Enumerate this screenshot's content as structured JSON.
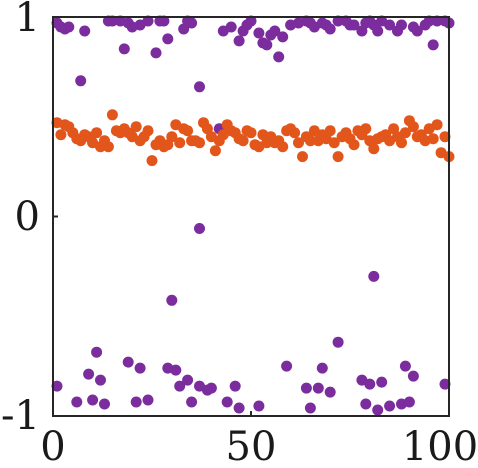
{
  "chart_data": {
    "type": "scatter",
    "title": "",
    "xlabel": "",
    "ylabel": "",
    "xlim": [
      0,
      100
    ],
    "ylim": [
      -1,
      1
    ],
    "grid": false,
    "legend": "none",
    "x_ticks": [
      {
        "value": 0,
        "label": "0"
      },
      {
        "value": 50,
        "label": "50"
      },
      {
        "value": 100,
        "label": "100"
      }
    ],
    "y_ticks": [
      {
        "value": -1,
        "label": "-1"
      },
      {
        "value": 0,
        "label": "0"
      },
      {
        "value": 1,
        "label": "1"
      }
    ],
    "series": [
      {
        "color": "#7B2D9E",
        "points": [
          [
            1,
            0.97
          ],
          [
            2,
            0.95
          ],
          [
            3,
            0.94
          ],
          [
            4,
            0.95
          ],
          [
            7,
            0.68
          ],
          [
            8,
            0.93
          ],
          [
            14,
            0.98
          ],
          [
            15,
            0.98
          ],
          [
            17,
            0.98
          ],
          [
            18,
            0.84
          ],
          [
            19,
            0.97
          ],
          [
            20,
            0.95
          ],
          [
            22,
            0.96
          ],
          [
            24,
            0.98
          ],
          [
            26,
            0.82
          ],
          [
            27,
            0.98
          ],
          [
            28,
            0.98
          ],
          [
            29,
            0.89
          ],
          [
            33,
            0.94
          ],
          [
            34,
            0.98
          ],
          [
            35,
            0.97
          ],
          [
            37,
            0.65
          ],
          [
            43,
            0.93
          ],
          [
            45,
            0.95
          ],
          [
            47,
            0.88
          ],
          [
            48,
            0.93
          ],
          [
            49,
            0.96
          ],
          [
            50,
            0.98
          ],
          [
            52,
            0.92
          ],
          [
            53,
            0.87
          ],
          [
            54,
            0.86
          ],
          [
            55,
            0.91
          ],
          [
            56,
            0.93
          ],
          [
            57,
            0.8
          ],
          [
            58,
            0.9
          ],
          [
            60,
            0.96
          ],
          [
            62,
            0.97
          ],
          [
            64,
            0.98
          ],
          [
            65,
            0.97
          ],
          [
            66,
            0.95
          ],
          [
            68,
            0.97
          ],
          [
            69,
            0.96
          ],
          [
            70,
            0.94
          ],
          [
            72,
            0.98
          ],
          [
            74,
            0.98
          ],
          [
            75,
            0.96
          ],
          [
            76,
            0.96
          ],
          [
            78,
            0.93
          ],
          [
            79,
            0.97
          ],
          [
            80,
            0.98
          ],
          [
            81,
            0.96
          ],
          [
            82,
            0.93
          ],
          [
            83,
            0.98
          ],
          [
            85,
            0.96
          ],
          [
            87,
            0.93
          ],
          [
            88,
            0.96
          ],
          [
            91,
            0.95
          ],
          [
            92,
            0.93
          ],
          [
            94,
            0.96
          ],
          [
            95,
            0.98
          ],
          [
            96,
            0.86
          ],
          [
            97,
            0.98
          ],
          [
            99,
            0.98
          ],
          [
            100,
            0.97
          ],
          [
            42,
            0.44
          ],
          [
            37,
            -0.06
          ],
          [
            30,
            -0.42
          ],
          [
            81,
            -0.3
          ],
          [
            1,
            -0.85
          ],
          [
            6,
            -0.93
          ],
          [
            9,
            -0.79
          ],
          [
            10,
            -0.92
          ],
          [
            11,
            -0.68
          ],
          [
            12,
            -0.82
          ],
          [
            13,
            -0.94
          ],
          [
            19,
            -0.73
          ],
          [
            21,
            -0.93
          ],
          [
            22,
            -0.76
          ],
          [
            24,
            -0.92
          ],
          [
            29,
            -0.76
          ],
          [
            31,
            -0.77
          ],
          [
            32,
            -0.85
          ],
          [
            34,
            -0.82
          ],
          [
            35,
            -0.93
          ],
          [
            37,
            -0.85
          ],
          [
            39,
            -0.87
          ],
          [
            40,
            -0.86
          ],
          [
            44,
            -0.93
          ],
          [
            46,
            -0.85
          ],
          [
            47,
            -0.96
          ],
          [
            52,
            -0.95
          ],
          [
            59,
            -0.75
          ],
          [
            64,
            -0.86
          ],
          [
            65,
            -0.96
          ],
          [
            67,
            -0.86
          ],
          [
            68,
            -0.76
          ],
          [
            70,
            -0.88
          ],
          [
            72,
            -0.63
          ],
          [
            78,
            -0.82
          ],
          [
            79,
            -0.94
          ],
          [
            80,
            -0.84
          ],
          [
            82,
            -0.97
          ],
          [
            83,
            -0.83
          ],
          [
            85,
            -0.95
          ],
          [
            88,
            -0.94
          ],
          [
            89,
            -0.75
          ],
          [
            90,
            -0.93
          ],
          [
            91,
            -0.8
          ],
          [
            99,
            -0.84
          ]
        ]
      },
      {
        "color": "#E2561C",
        "points": [
          [
            1,
            0.47
          ],
          [
            2,
            0.41
          ],
          [
            3,
            0.46
          ],
          [
            4,
            0.45
          ],
          [
            5,
            0.42
          ],
          [
            6,
            0.39
          ],
          [
            7,
            0.38
          ],
          [
            8,
            0.41
          ],
          [
            9,
            0.4
          ],
          [
            10,
            0.37
          ],
          [
            11,
            0.42
          ],
          [
            12,
            0.35
          ],
          [
            13,
            0.38
          ],
          [
            14,
            0.35
          ],
          [
            15,
            0.51
          ],
          [
            16,
            0.43
          ],
          [
            17,
            0.42
          ],
          [
            18,
            0.44
          ],
          [
            19,
            0.42
          ],
          [
            20,
            0.4
          ],
          [
            21,
            0.45
          ],
          [
            22,
            0.38
          ],
          [
            23,
            0.4
          ],
          [
            24,
            0.43
          ],
          [
            25,
            0.28
          ],
          [
            26,
            0.36
          ],
          [
            27,
            0.38
          ],
          [
            28,
            0.35
          ],
          [
            29,
            0.36
          ],
          [
            30,
            0.4
          ],
          [
            31,
            0.46
          ],
          [
            32,
            0.37
          ],
          [
            33,
            0.44
          ],
          [
            34,
            0.43
          ],
          [
            35,
            0.38
          ],
          [
            36,
            0.38
          ],
          [
            37,
            0.37
          ],
          [
            38,
            0.47
          ],
          [
            39,
            0.44
          ],
          [
            40,
            0.4
          ],
          [
            41,
            0.33
          ],
          [
            42,
            0.38
          ],
          [
            43,
            0.41
          ],
          [
            44,
            0.46
          ],
          [
            45,
            0.43
          ],
          [
            46,
            0.42
          ],
          [
            47,
            0.39
          ],
          [
            48,
            0.38
          ],
          [
            49,
            0.43
          ],
          [
            50,
            0.42
          ],
          [
            51,
            0.36
          ],
          [
            52,
            0.35
          ],
          [
            53,
            0.41
          ],
          [
            54,
            0.37
          ],
          [
            55,
            0.4
          ],
          [
            56,
            0.37
          ],
          [
            57,
            0.38
          ],
          [
            58,
            0.35
          ],
          [
            59,
            0.43
          ],
          [
            60,
            0.44
          ],
          [
            61,
            0.42
          ],
          [
            62,
            0.37
          ],
          [
            63,
            0.3
          ],
          [
            64,
            0.4
          ],
          [
            65,
            0.38
          ],
          [
            66,
            0.43
          ],
          [
            67,
            0.38
          ],
          [
            68,
            0.41
          ],
          [
            69,
            0.39
          ],
          [
            70,
            0.43
          ],
          [
            71,
            0.37
          ],
          [
            72,
            0.3
          ],
          [
            73,
            0.4
          ],
          [
            74,
            0.42
          ],
          [
            75,
            0.39
          ],
          [
            76,
            0.36
          ],
          [
            77,
            0.43
          ],
          [
            78,
            0.41
          ],
          [
            79,
            0.44
          ],
          [
            80,
            0.38
          ],
          [
            81,
            0.34
          ],
          [
            82,
            0.39
          ],
          [
            83,
            0.4
          ],
          [
            84,
            0.41
          ],
          [
            85,
            0.38
          ],
          [
            86,
            0.44
          ],
          [
            87,
            0.4
          ],
          [
            88,
            0.37
          ],
          [
            89,
            0.42
          ],
          [
            90,
            0.48
          ],
          [
            91,
            0.45
          ],
          [
            92,
            0.4
          ],
          [
            93,
            0.41
          ],
          [
            94,
            0.38
          ],
          [
            95,
            0.44
          ],
          [
            96,
            0.39
          ],
          [
            97,
            0.46
          ],
          [
            98,
            0.32
          ],
          [
            99,
            0.4
          ],
          [
            100,
            0.3
          ]
        ]
      }
    ]
  }
}
